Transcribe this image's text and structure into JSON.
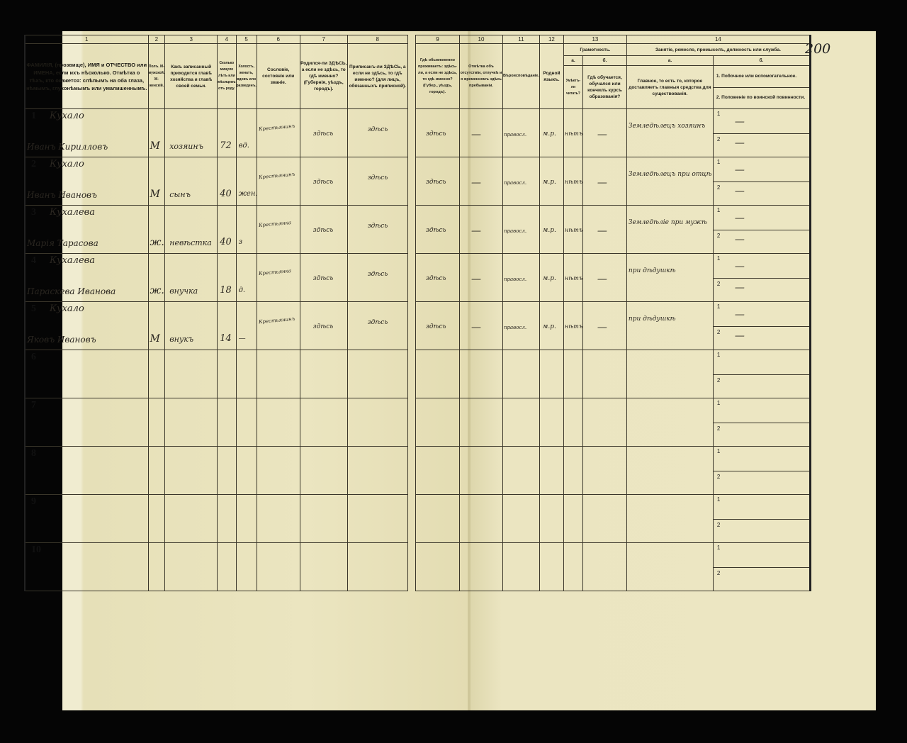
{
  "page_number": "200",
  "left_headers": {
    "numbers": [
      "1",
      "2",
      "3",
      "4",
      "5",
      "6",
      "7",
      "8"
    ],
    "c1": "ФАМИЛІЯ, (прозвище), ИМЯ и ОТЧЕСТВО или ИМЕНА, если ихъ нѣсколько. Отмѣтка о тѣхъ, кто окажется: слѣпымъ на оба глаза, нѣмымъ, глухонѣмымъ или умалишеннымъ.",
    "c2": "Полъ. М-мужской. Ж-женскій.",
    "c3": "Какъ записанный приходится главѣ хозяйства и главѣ своей семьи.",
    "c4": "Сколько минуло лѣтъ или мѣсяцевъ отъ роду.",
    "c5": "Холостъ, женатъ, вдовъ или разведенъ.",
    "c6": "Сословіе, состояніе или званіе.",
    "c7": "Родился-ли ЗДѢСЬ, а если не здѣсь, то гдѣ именно? (Губернія, уѣздъ, городъ).",
    "c8": "Приписанъ-ли ЗДѢСЬ, а если не здѣсь, то гдѣ именно? (для лицъ, обязанныхъ припиской)."
  },
  "right_headers": {
    "numbers": [
      "9",
      "10",
      "11",
      "12",
      "13",
      "14"
    ],
    "c9": "Гдѣ обыкновенно проживаетъ: здѣсь-ли, а если не здѣсь, то гдѣ именно? (Губер., уѣздъ, городъ).",
    "c10": "Отмѣтка объ отсутствіи, отлучкѣ и о временномъ здѣсь пребываніи.",
    "c11": "Вѣроисповѣданіе.",
    "c12": "Родной языкъ.",
    "c13": "Грамотность.",
    "c13a": "а.",
    "c13a_text": "Умѣетъ-ли читать?",
    "c13b": "б.",
    "c13b_text": "Гдѣ обучается, обучался или кончилъ курсъ образованія?",
    "c14": "Занятіе, ремесло, промыселъ, должность или служба.",
    "c14a": "а.",
    "c14a_text": "Главное, то есть то, которое доставляетъ главныя средства для существованія.",
    "c14b": "б.",
    "c14b_1": "1. Побочное или вспомогательное.",
    "c14b_2": "2. Положеніе по воинской повинности."
  },
  "rows": [
    {
      "n": "1",
      "surname": "Кухало",
      "name": "Иванъ Кирилловъ",
      "sex": "М",
      "relation": "хозяинъ",
      "age": "72",
      "marital": "вд.",
      "estate": "Крестьянинъ",
      "born": "здѣсь",
      "registered": "здѣсь",
      "residence": "здѣсь",
      "absence": "—",
      "religion": "правосл.",
      "language": "м.р.",
      "literate": "нѣтъ",
      "school": "—",
      "occupation": "Земледѣлецъ хозяинъ",
      "side1": "—",
      "side2": "—"
    },
    {
      "n": "2",
      "surname": "Кухало",
      "name": "Иванъ Ивановъ",
      "sex": "М",
      "relation": "сынъ",
      "age": "40",
      "marital": "жен.",
      "estate": "Крестьянинъ",
      "born": "здѣсь",
      "registered": "здѣсь",
      "residence": "здѣсь",
      "absence": "—",
      "religion": "правосл.",
      "language": "м.р.",
      "literate": "нѣтъ",
      "school": "—",
      "occupation": "Земледѣлецъ при отцѣ",
      "side1": "—",
      "side2": "—"
    },
    {
      "n": "3",
      "surname": "Кухалева",
      "name": "Марія Тарасова",
      "sex": "ж.",
      "relation": "невѣстка",
      "age": "40",
      "marital": "з",
      "estate": "Крестьянка",
      "born": "здѣсь",
      "registered": "здѣсь",
      "residence": "здѣсь",
      "absence": "—",
      "religion": "правосл.",
      "language": "м.р.",
      "literate": "нѣтъ",
      "school": "—",
      "occupation": "Земледѣліе при мужѣ",
      "side1": "—",
      "side2": "—"
    },
    {
      "n": "4",
      "surname": "Кухалева",
      "name": "Параскева Иванова",
      "sex": "ж.",
      "relation": "внучка",
      "age": "18",
      "marital": "д.",
      "estate": "Крестьянка",
      "born": "здѣсь",
      "registered": "здѣсь",
      "residence": "здѣсь",
      "absence": "—",
      "religion": "правосл.",
      "language": "м.р.",
      "literate": "нѣтъ",
      "school": "—",
      "occupation": "при дѣдушкѣ",
      "side1": "—",
      "side2": "—"
    },
    {
      "n": "5",
      "surname": "Кухало",
      "name": "Яковъ Ивановъ",
      "sex": "М",
      "relation": "внукъ",
      "age": "14",
      "marital": "—",
      "estate": "Крестьянинъ",
      "born": "здѣсь",
      "registered": "здѣсь",
      "residence": "здѣсь",
      "absence": "—",
      "religion": "правосл.",
      "language": "м.р.",
      "literate": "нѣтъ",
      "school": "—",
      "occupation": "при дѣдушкѣ",
      "side1": "—",
      "side2": "—"
    },
    {
      "n": "6"
    },
    {
      "n": "7"
    },
    {
      "n": "8"
    },
    {
      "n": "9"
    },
    {
      "n": "10"
    }
  ],
  "sub_labels": [
    "1",
    "2"
  ]
}
